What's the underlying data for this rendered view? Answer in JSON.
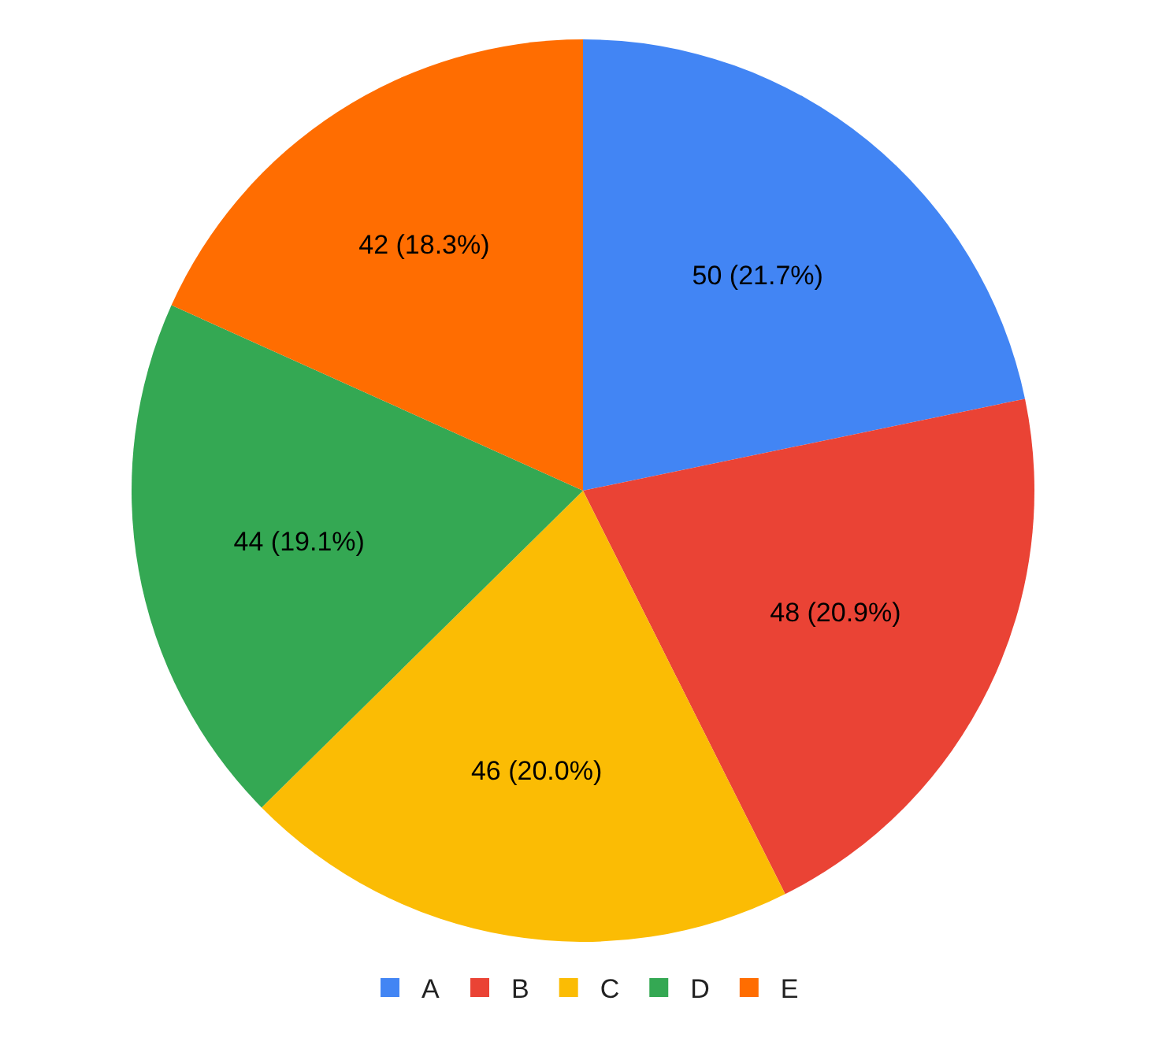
{
  "chart_data": {
    "type": "pie",
    "categories": [
      "A",
      "B",
      "C",
      "D",
      "E"
    ],
    "values": [
      50,
      48,
      46,
      44,
      42
    ],
    "colors": [
      "#4285f4",
      "#ea4335",
      "#fbbc04",
      "#34a853",
      "#ff6d01"
    ],
    "value_labels": [
      "50 (21.7%)",
      "48 (20.9%)",
      "46 (20.0%)",
      "44 (19.1%)",
      "42 (18.3%)"
    ],
    "legend": "bottom"
  }
}
